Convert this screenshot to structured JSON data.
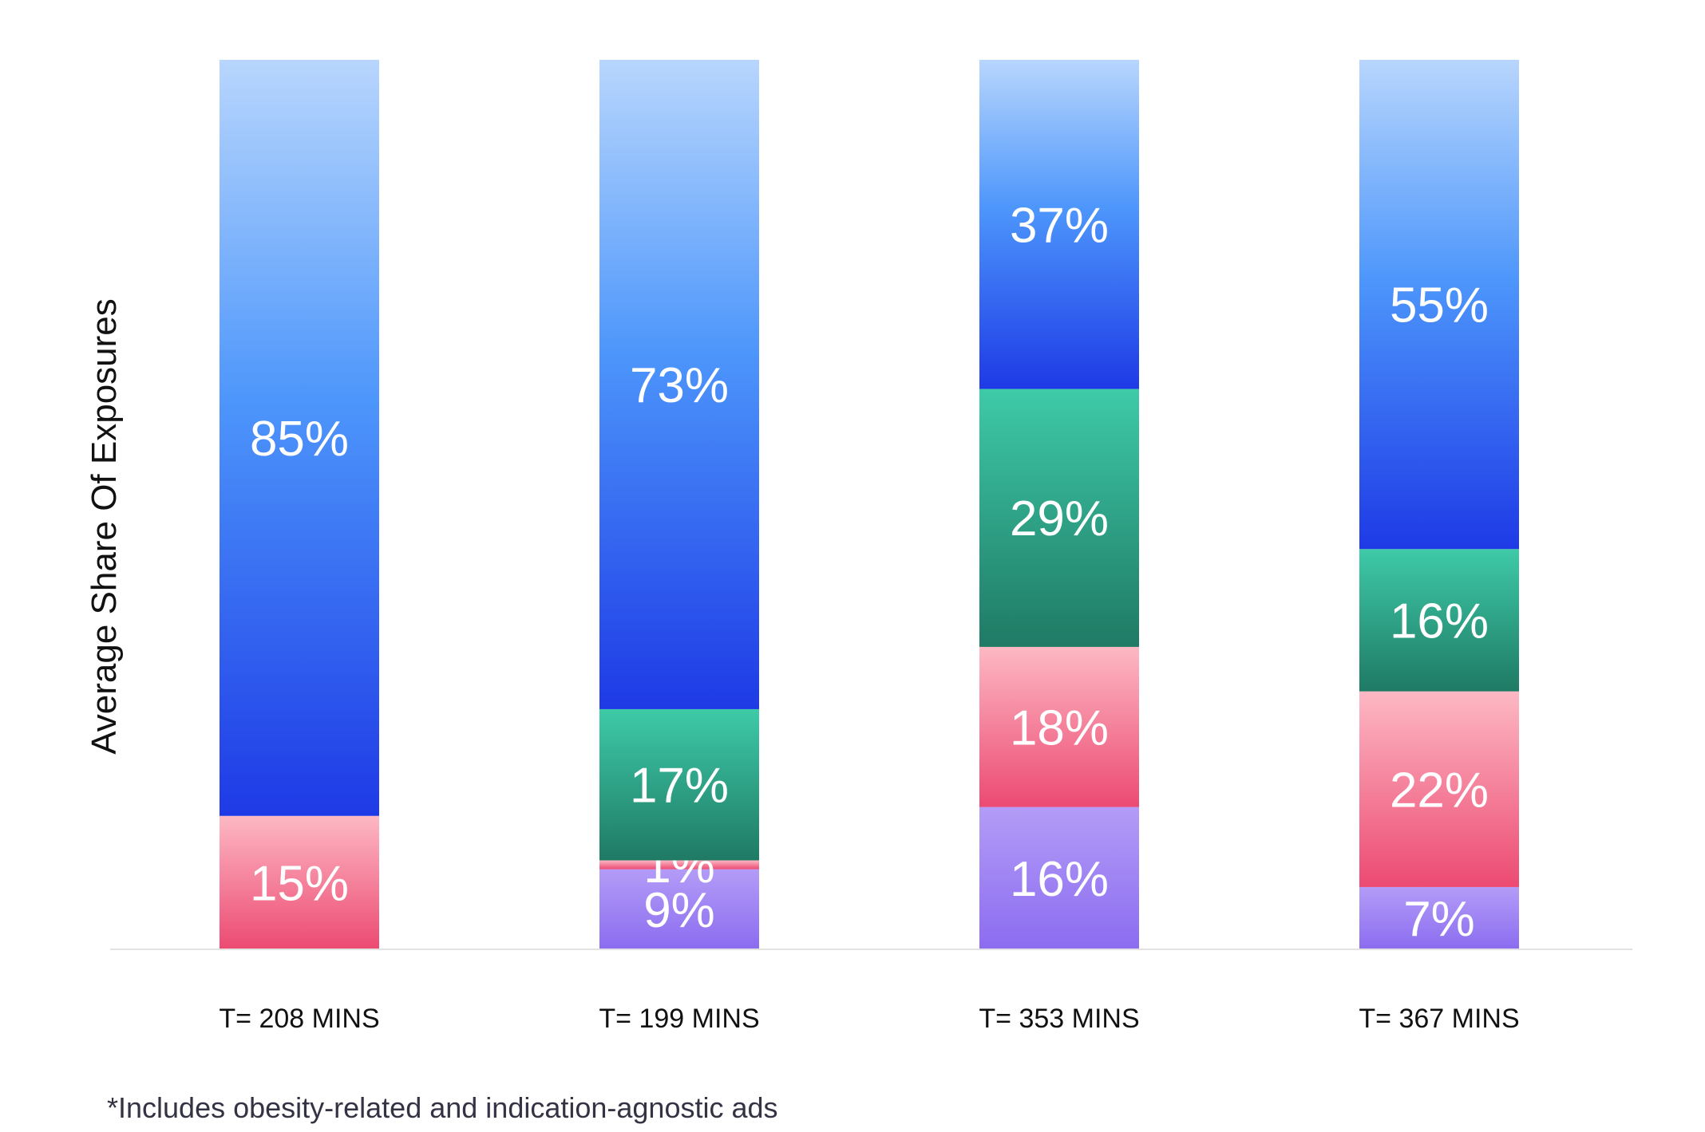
{
  "chart_data": {
    "type": "bar",
    "stacked": true,
    "ylabel": "Average Share Of Exposures",
    "xlabel": "",
    "ylim": [
      0,
      100
    ],
    "grid": false,
    "legend": "none",
    "categories": [
      "T= 208 MINS",
      "T= 199 MINS",
      "T= 353 MINS",
      "T= 367 MINS"
    ],
    "series": [
      {
        "color_top": "#b39cf7",
        "color_bottom": "#8b6cf0",
        "values": [
          0,
          9,
          16,
          7
        ],
        "labels": [
          "",
          "9%",
          "16%",
          "7%"
        ]
      },
      {
        "color_top": "#fdb8c4",
        "color_bottom": "#ec4a72",
        "values": [
          15,
          1,
          18,
          22
        ],
        "labels": [
          "15%",
          "1%",
          "18%",
          "22%"
        ]
      },
      {
        "color_top": "#3ecaa8",
        "color_bottom": "#1f7a64",
        "values": [
          0,
          17,
          29,
          16
        ],
        "labels": [
          "",
          "17%",
          "29%",
          "16%"
        ]
      },
      {
        "color_top": "#b8d6fd",
        "color_bottom": "#1e3ae6",
        "values": [
          85,
          73,
          37,
          55
        ],
        "labels": [
          "85%",
          "73%",
          "37%",
          "55%"
        ]
      }
    ]
  },
  "footnote": "*Includes obesity-related and indication-agnostic ads"
}
